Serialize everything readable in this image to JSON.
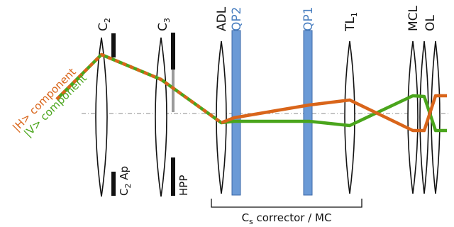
{
  "colors": {
    "h_beam": "#d9651a",
    "v_beam": "#4aa51c",
    "qp_plate": "#6b9ad6",
    "qp_label": "#4a7fc0",
    "axis": "#888888"
  },
  "labels": {
    "c2": {
      "main": "C",
      "sub": "2"
    },
    "c3": {
      "main": "C",
      "sub": "3"
    },
    "adl": "ADL",
    "qp2": "QP2",
    "qp1": "QP1",
    "tl1": {
      "main": "TL",
      "sub": "1"
    },
    "mcl": "MCL",
    "ol": "OL",
    "c2ap": {
      "main": "C",
      "sub": "2",
      "rest": " Ap"
    },
    "hpp": "HPP",
    "corrector": {
      "main": "C",
      "sub": "s",
      "rest": " corrector / MC"
    },
    "h_component": "|H> component",
    "v_component": "|V> component"
  }
}
